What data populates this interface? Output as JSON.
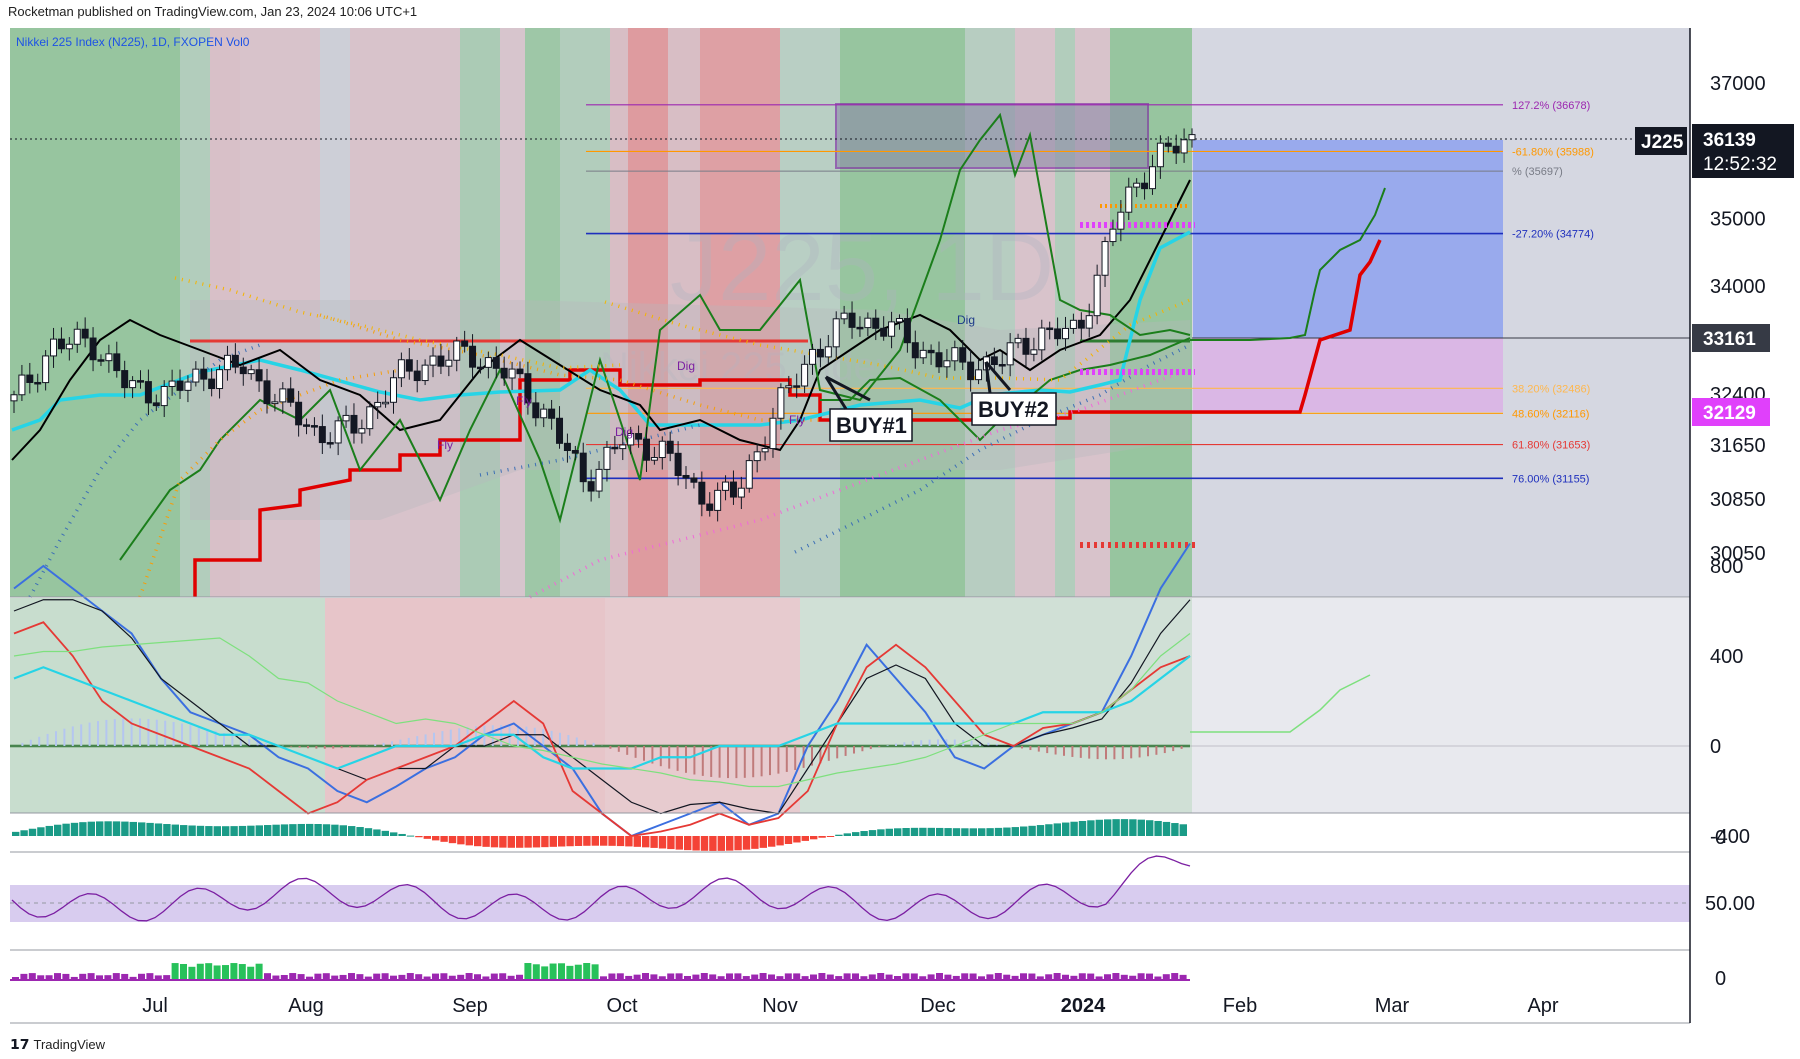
{
  "header": {
    "publisher_line": "Rocketman published on TradingView.com, Jan 23, 2024 10:06 UTC+1"
  },
  "chart_title": "Nikkei 225 Index (N225), 1D, FXOPEN  Vol0",
  "watermark": "J225, 1D",
  "watermark_sub": "Nikkei 225 Index",
  "footer": {
    "brand": "TradingView",
    "logo": "tradingview-logo-icon"
  },
  "price_labels": {
    "symbol": "J225",
    "last": "36139",
    "countdown": "12:52:32",
    "level_a": "33161",
    "level_b": "32129"
  },
  "annotations": {
    "buy1": "BUY#1",
    "buy2": "BUY#2",
    "dig1": "Dig",
    "dig2": "Dig",
    "dig3": "Dig",
    "fly1": "Fly",
    "fly2": "Fly",
    "fly3": "Fly"
  },
  "fib_levels": [
    {
      "label": "127.2% (36678)",
      "price": 36678,
      "color": "#9c27b0"
    },
    {
      "label": "-61.80% (35988)",
      "price": 35988,
      "color": "#ff9800"
    },
    {
      "label": "% (35697)",
      "price": 35697,
      "color": "#787b86"
    },
    {
      "label": "-27.20% (34774)",
      "price": 34774,
      "color": "#1e2fbd"
    },
    {
      "label": "38.20% (32486)",
      "price": 32486,
      "color": "#ffb74d"
    },
    {
      "label": "48.60% (32116)",
      "price": 32116,
      "color": "#ff9800"
    },
    {
      "label": "61.80% (31653)",
      "price": 31653,
      "color": "#e53935"
    },
    {
      "label": "76.00% (31155)",
      "price": 31155,
      "color": "#1e2fbd"
    }
  ],
  "colors": {
    "bull_zone": "#4caf50",
    "bear_zone": "#e57373",
    "kijun": "#e00000",
    "tenkan": "#000000",
    "cyan_line": "#26d4e6",
    "green_line": "#1b7e1b",
    "projection_zone": "#5c7cfa",
    "pink_zone": "#e1a7df"
  },
  "chart_data": [
    {
      "type": "line",
      "title": "Nikkei 225 Index (N225), 1D, FXOPEN",
      "xlabel": "",
      "ylabel": "",
      "x_ticks": [
        "Jul",
        "Aug",
        "Sep",
        "Oct",
        "Nov",
        "Dec",
        "2024",
        "Feb",
        "Mar",
        "Apr"
      ],
      "y_ticks": [
        37000,
        35000,
        34000,
        32400,
        31650,
        30850,
        30050
      ],
      "ylim": [
        29700,
        37800
      ],
      "series": [
        {
          "name": "",
          "x": [
            "Jun 20",
            "Jun 27",
            "Jul 4",
            "Jul 11",
            "Jul 18",
            "Jul 25",
            "Aug 1",
            "Aug 8",
            "Aug 15",
            "Aug 22",
            "Aug 29",
            "Sep 5",
            "Sep 12",
            "Sep 19",
            "Sep 26",
            "Oct 3",
            "Oct 10",
            "Oct 17",
            "Oct 24",
            "Oct 31",
            "Nov 7",
            "Nov 14",
            "Nov 21",
            "Nov 28",
            "Dec 5",
            "Dec 12",
            "Dec 19",
            "Dec 26",
            "Jan 4",
            "Jan 11",
            "Jan 18",
            "Jan 23"
          ],
          "values": [
            32300,
            33100,
            33200,
            32500,
            32400,
            32700,
            32800,
            32300,
            31800,
            31900,
            32600,
            32900,
            33000,
            32700,
            32100,
            31100,
            31700,
            31600,
            30900,
            30900,
            32100,
            33000,
            33500,
            33400,
            33000,
            32800,
            32900,
            33300,
            33300,
            35000,
            35900,
            36139
          ]
        }
      ],
      "grid": true,
      "legend": "none"
    },
    {
      "type": "line",
      "title": "",
      "y_ticks": [
        800,
        400,
        0,
        -400
      ],
      "ylim": [
        -600,
        1100
      ]
    },
    {
      "type": "bar",
      "title": "",
      "y_ticks": [
        0
      ]
    },
    {
      "type": "line",
      "title": "",
      "y_ticks": [
        50.0
      ]
    },
    {
      "type": "bar",
      "title": "",
      "y_ticks": [
        0
      ]
    }
  ]
}
